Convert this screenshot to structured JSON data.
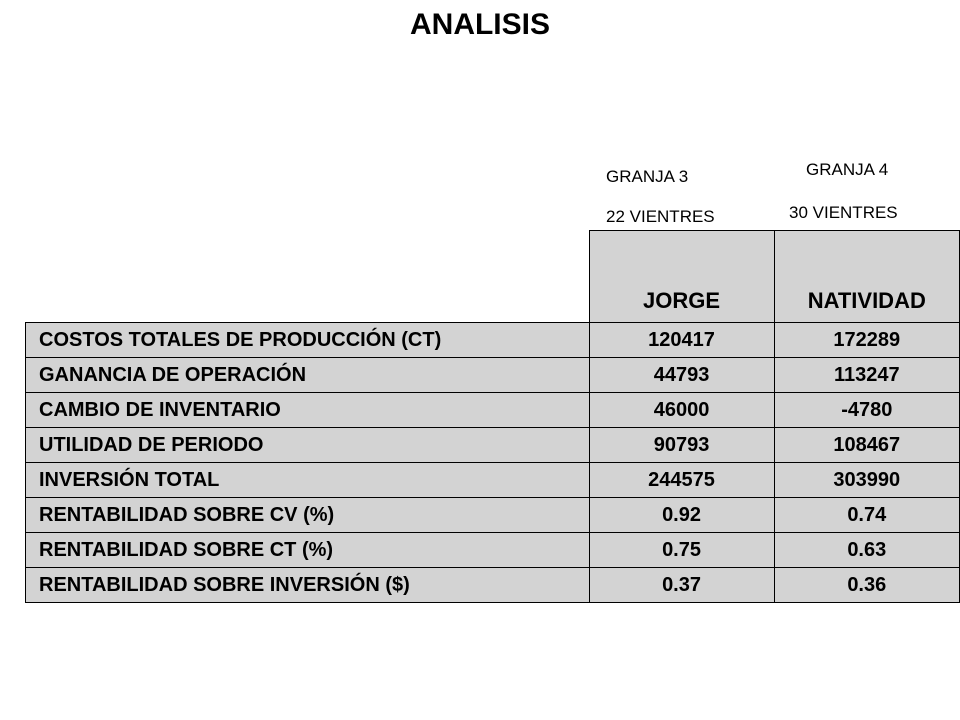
{
  "title": "ANALISIS",
  "columns": [
    {
      "farm": "GRANJA 3",
      "sows": "22 VIENTRES",
      "owner": "JORGE"
    },
    {
      "farm": "GRANJA 4",
      "sows": "30 VIENTRES",
      "owner": "NATIVIDAD"
    }
  ],
  "rows": [
    {
      "label": "COSTOS TOTALES DE PRODUCCIÓN (CT)",
      "values": [
        "120417",
        "172289"
      ]
    },
    {
      "label": "GANANCIA DE OPERACIÓN",
      "values": [
        "44793",
        "113247"
      ]
    },
    {
      "label": "CAMBIO DE INVENTARIO",
      "values": [
        "46000",
        "-4780"
      ]
    },
    {
      "label": "UTILIDAD DE PERIODO",
      "values": [
        "90793",
        "108467"
      ]
    },
    {
      "label": "INVERSIÓN TOTAL",
      "values": [
        "244575",
        "303990"
      ]
    },
    {
      "label": "RENTABILIDAD SOBRE CV (%)",
      "values": [
        "0.92",
        "0.74"
      ]
    },
    {
      "label": "RENTABILIDAD SOBRE CT (%)",
      "values": [
        "0.75",
        "0.63"
      ]
    },
    {
      "label": "RENTABILIDAD SOBRE INVERSIÓN ($)",
      "values": [
        "0.37",
        "0.36"
      ]
    }
  ]
}
